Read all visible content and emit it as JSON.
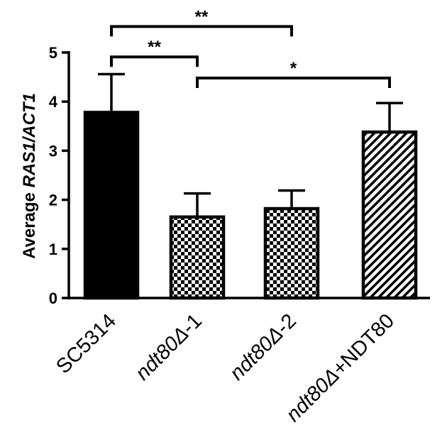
{
  "chart_data": {
    "type": "bar",
    "ylabel_parts": [
      "Average ",
      "RAS1/ACT1"
    ],
    "categories": [
      {
        "label": "SC5314",
        "italic": "",
        "suffix": ""
      },
      {
        "label": "ndt80Δ-1",
        "italic": "ndt80Δ",
        "suffix": "-1"
      },
      {
        "label": "ndt80Δ-2",
        "italic": "ndt80Δ",
        "suffix": "-2"
      },
      {
        "label": "ndt80Δ+NDT80",
        "italic": "ndt80Δ",
        "suffix": "+NDT80"
      }
    ],
    "values": [
      3.78,
      1.65,
      1.82,
      3.38
    ],
    "errors": [
      0.78,
      0.48,
      0.37,
      0.59
    ],
    "fills": [
      "solid",
      "checker",
      "checker",
      "diagonal"
    ],
    "ylim": [
      0,
      5
    ],
    "yticks": [
      "0",
      "1",
      "2",
      "3",
      "4",
      "5"
    ],
    "significance": [
      {
        "from": 0,
        "to": 2,
        "label": "**",
        "level": 5.53
      },
      {
        "from": 0,
        "to": 1,
        "label": "**",
        "level": 4.91
      },
      {
        "from": 1,
        "to": 3,
        "label": "*",
        "level": 4.48
      }
    ],
    "colors": {
      "ink": "#000000",
      "background": "#ffffff"
    }
  }
}
